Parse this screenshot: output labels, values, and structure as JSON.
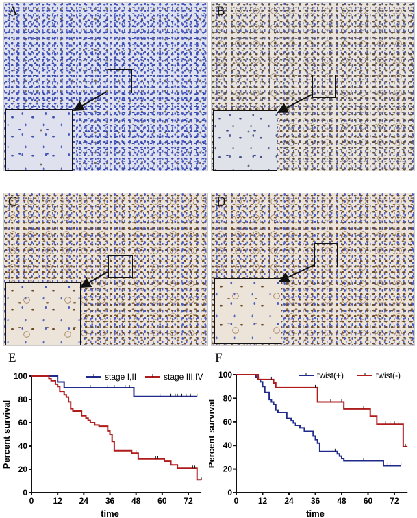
{
  "panels": {
    "a": "A",
    "b": "B",
    "c": "C",
    "d": "D",
    "e": "E",
    "f": "F"
  },
  "chart_data": [
    {
      "type": "line",
      "panel": "E",
      "xlabel": "time",
      "ylabel": "Percent survival",
      "xlim": [
        0,
        78
      ],
      "ylim": [
        0,
        100
      ],
      "xticks": [
        0,
        12,
        24,
        36,
        48,
        60,
        72
      ],
      "yticks": [
        0,
        20,
        40,
        60,
        80,
        100
      ],
      "legend": "top-right",
      "series": [
        {
          "name": "stage I,II",
          "color": "#1f2a8c",
          "steps": [
            [
              0,
              100
            ],
            [
              12,
              95
            ],
            [
              15,
              90
            ],
            [
              47,
              82.5
            ],
            [
              76,
              82.5
            ]
          ],
          "censored": [
            27,
            35,
            38,
            43,
            45,
            59,
            64,
            66,
            67,
            69,
            71,
            73,
            76
          ]
        },
        {
          "name": "stage III,IV",
          "color": "#b01c1c",
          "steps": [
            [
              0,
              100
            ],
            [
              8,
              98
            ],
            [
              9,
              96
            ],
            [
              11,
              93
            ],
            [
              12,
              91
            ],
            [
              13,
              87
            ],
            [
              15,
              84
            ],
            [
              16,
              82
            ],
            [
              17,
              78
            ],
            [
              18,
              72
            ],
            [
              19,
              70
            ],
            [
              23,
              66
            ],
            [
              25,
              64
            ],
            [
              26,
              62
            ],
            [
              27,
              60
            ],
            [
              29,
              58
            ],
            [
              31,
              57
            ],
            [
              35,
              53
            ],
            [
              36,
              50
            ],
            [
              37,
              44
            ],
            [
              38,
              36
            ],
            [
              46,
              34
            ],
            [
              49,
              29
            ],
            [
              61,
              27
            ],
            [
              64,
              24
            ],
            [
              67,
              21
            ],
            [
              76,
              11
            ],
            [
              78,
              11
            ]
          ],
          "censored": [
            48,
            57,
            58,
            74,
            75,
            78
          ]
        }
      ]
    },
    {
      "type": "line",
      "panel": "F",
      "xlabel": "time",
      "ylabel": "Percent survival",
      "xlim": [
        0,
        78
      ],
      "ylim": [
        0,
        100
      ],
      "xticks": [
        0,
        12,
        24,
        36,
        48,
        60,
        72
      ],
      "yticks": [
        0,
        20,
        40,
        60,
        80,
        100
      ],
      "legend": "top-right",
      "series": [
        {
          "name": "twist(+)",
          "color": "#1f2a8c",
          "steps": [
            [
              0,
              100
            ],
            [
              9,
              98
            ],
            [
              10,
              96
            ],
            [
              11,
              94
            ],
            [
              12,
              90
            ],
            [
              13,
              85
            ],
            [
              15,
              79
            ],
            [
              16,
              77
            ],
            [
              17,
              75
            ],
            [
              18,
              70
            ],
            [
              19,
              68
            ],
            [
              23,
              63
            ],
            [
              25,
              61
            ],
            [
              26,
              59
            ],
            [
              27,
              57
            ],
            [
              29,
              55
            ],
            [
              31,
              52
            ],
            [
              35,
              48
            ],
            [
              36,
              45
            ],
            [
              37,
              42
            ],
            [
              38,
              35
            ],
            [
              46,
              33
            ],
            [
              47,
              31
            ],
            [
              48,
              29
            ],
            [
              49,
              27
            ],
            [
              67,
              23
            ],
            [
              75,
              23
            ]
          ],
          "censored": [
            45,
            58,
            65,
            69,
            70,
            75
          ]
        },
        {
          "name": "twist(-)",
          "color": "#b01c1c",
          "steps": [
            [
              0,
              100
            ],
            [
              10,
              96
            ],
            [
              17,
              93
            ],
            [
              18,
              89
            ],
            [
              37,
              77
            ],
            [
              49,
              71
            ],
            [
              61,
              65
            ],
            [
              64,
              58
            ],
            [
              76,
              39
            ],
            [
              78,
              39
            ]
          ],
          "censored": [
            16,
            36,
            43,
            48,
            49,
            58,
            60,
            68,
            70,
            72,
            74,
            77
          ]
        }
      ]
    }
  ]
}
